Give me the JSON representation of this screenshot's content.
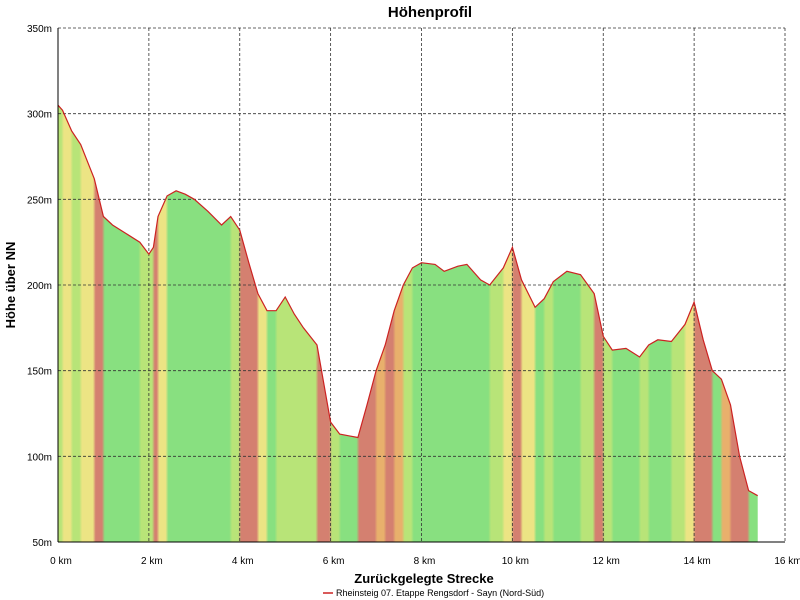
{
  "chart_data": {
    "type": "area",
    "title": "Höhenprofil",
    "xlabel": "Zurückgelegte Strecke",
    "ylabel": "Höhe über NN",
    "xlim": [
      0,
      16
    ],
    "ylim": [
      50,
      350
    ],
    "x_ticks": [
      0,
      2,
      4,
      6,
      8,
      10,
      12,
      14,
      16
    ],
    "x_tick_labels": [
      "0 km",
      "2 km",
      "4 km",
      "6 km",
      "8 km",
      "10 km",
      "12 km",
      "14 km",
      "16 km"
    ],
    "y_ticks": [
      50,
      100,
      150,
      200,
      250,
      300,
      350
    ],
    "y_tick_labels": [
      "50m",
      "100m",
      "150m",
      "200m",
      "250m",
      "300m",
      "350m"
    ],
    "grid": true,
    "legend": "bottom-center",
    "series": [
      {
        "name": "Rheinsteig 07. Etappe Rengsdorf - Sayn (Nord-Süd)",
        "color": "#cc2222",
        "fill_gradient": "slope (green = flat, yellow = moderate, red = steep)",
        "x": [
          0.0,
          0.1,
          0.3,
          0.5,
          0.8,
          1.0,
          1.2,
          1.5,
          1.8,
          2.0,
          2.1,
          2.2,
          2.4,
          2.6,
          2.8,
          3.0,
          3.3,
          3.6,
          3.8,
          4.0,
          4.2,
          4.4,
          4.6,
          4.8,
          5.0,
          5.2,
          5.4,
          5.7,
          6.0,
          6.2,
          6.4,
          6.6,
          6.8,
          7.0,
          7.2,
          7.4,
          7.6,
          7.8,
          8.0,
          8.3,
          8.5,
          8.8,
          9.0,
          9.3,
          9.5,
          9.8,
          10.0,
          10.2,
          10.5,
          10.7,
          10.9,
          11.2,
          11.5,
          11.8,
          12.0,
          12.2,
          12.5,
          12.8,
          13.0,
          13.2,
          13.5,
          13.8,
          14.0,
          14.2,
          14.4,
          14.6,
          14.8,
          15.0,
          15.2,
          15.4
        ],
        "y": [
          305,
          302,
          290,
          282,
          262,
          240,
          235,
          230,
          225,
          218,
          222,
          240,
          252,
          255,
          253,
          250,
          243,
          235,
          240,
          232,
          213,
          195,
          185,
          185,
          193,
          183,
          175,
          165,
          120,
          113,
          112,
          111,
          130,
          150,
          165,
          185,
          200,
          210,
          213,
          212,
          208,
          211,
          212,
          203,
          200,
          210,
          222,
          203,
          187,
          192,
          202,
          208,
          206,
          195,
          170,
          162,
          163,
          158,
          165,
          168,
          167,
          177,
          190,
          168,
          150,
          145,
          130,
          100,
          80,
          77
        ]
      }
    ]
  }
}
